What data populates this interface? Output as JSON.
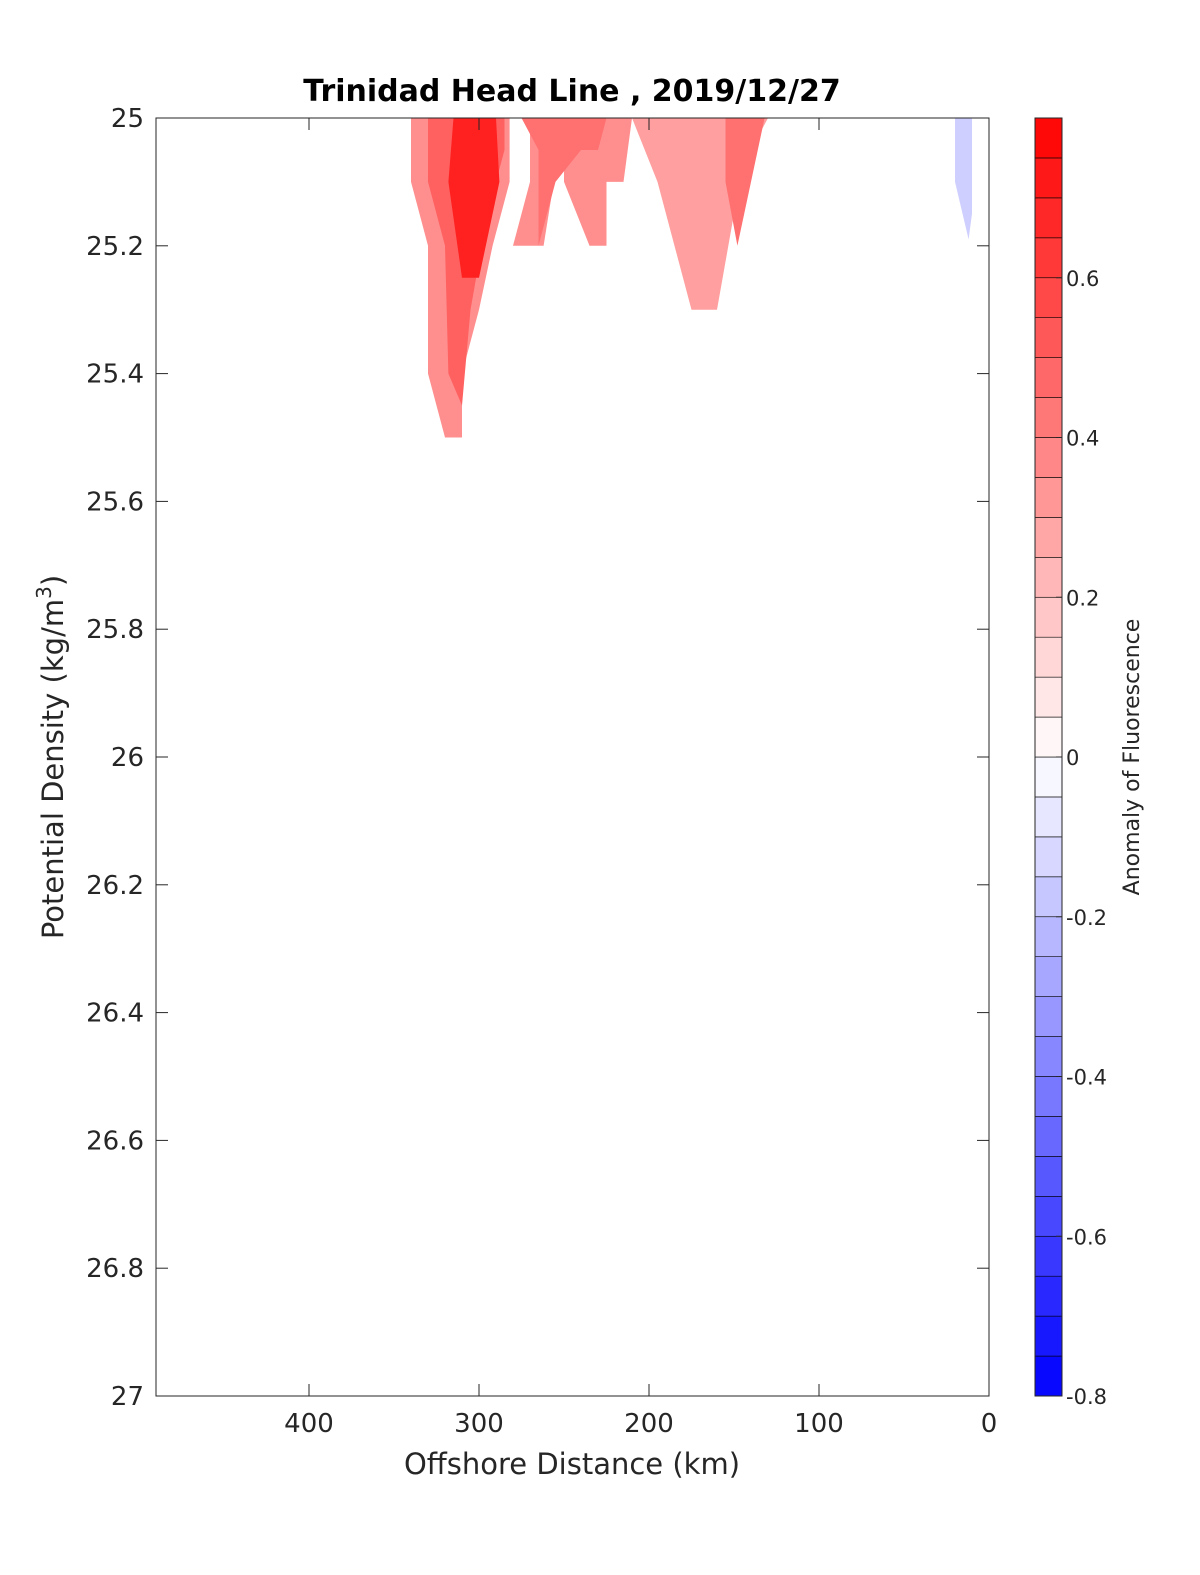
{
  "chart_data": {
    "type": "heatmap",
    "subtype": "filled-contour",
    "title": "Trinidad Head Line , 2019/12/27",
    "xlabel": "Offshore Distance (km)",
    "ylabel": "Potential Density (kg/m",
    "ylabel_sup": "3",
    "ylabel_end": ")",
    "x_direction": "reversed",
    "y_direction": "reversed",
    "xlim": [
      490,
      0
    ],
    "ylim": [
      25,
      27
    ],
    "xticks": [
      400,
      300,
      200,
      100,
      0
    ],
    "xtick_labels": [
      "400",
      "300",
      "200",
      "100",
      "0"
    ],
    "yticks": [
      25,
      25.2,
      25.4,
      25.6,
      25.8,
      26,
      26.2,
      26.4,
      26.6,
      26.8,
      27
    ],
    "ytick_labels": [
      "25",
      "25.2",
      "25.4",
      "25.6",
      "25.8",
      "26",
      "26.2",
      "26.4",
      "26.6",
      "26.8",
      "27"
    ],
    "grid": false,
    "colorbar": {
      "label": "Anomaly of Fluorescence",
      "range": [
        -0.8,
        0.8
      ],
      "levels": 32,
      "low_color": "#0000ff",
      "mid_color": "#ffffff",
      "high_color": "#ff0000",
      "ticks": [
        0.6,
        0.4,
        0.2,
        0,
        -0.2,
        -0.4,
        -0.6,
        -0.8
      ],
      "tick_labels": [
        "0.6",
        "0.4",
        "0.2",
        "0",
        "-0.2",
        "-0.4",
        "-0.6",
        "-0.8"
      ]
    },
    "regions": [
      {
        "name": "patch-340km-outer",
        "value": 0.35,
        "points": [
          [
            340,
            25
          ],
          [
            340,
            25.1
          ],
          [
            330,
            25.2
          ],
          [
            330,
            25.4
          ],
          [
            320,
            25.5
          ],
          [
            310,
            25.5
          ],
          [
            310,
            25.4
          ],
          [
            300,
            25.3
          ],
          [
            292,
            25.2
          ],
          [
            282,
            25.1
          ],
          [
            282,
            25
          ],
          [
            270,
            25
          ],
          [
            270,
            25.1
          ],
          [
            280,
            25.2
          ],
          [
            265,
            25.2
          ],
          [
            262,
            25.2
          ],
          [
            250,
            25
          ],
          [
            250,
            25.1
          ],
          [
            235,
            25.2
          ],
          [
            225,
            25.2
          ],
          [
            225,
            25.1
          ],
          [
            215,
            25.1
          ],
          [
            210,
            25
          ]
        ]
      },
      {
        "name": "patch-340km-mid",
        "value": 0.5,
        "points": [
          [
            330,
            25
          ],
          [
            330,
            25.1
          ],
          [
            320,
            25.2
          ],
          [
            318,
            25.4
          ],
          [
            310,
            25.45
          ],
          [
            305,
            25.3
          ],
          [
            295,
            25.15
          ],
          [
            285,
            25.05
          ],
          [
            285,
            25
          ]
        ]
      },
      {
        "name": "patch-340km-core",
        "value": 0.7,
        "points": [
          [
            315,
            25
          ],
          [
            318,
            25.1
          ],
          [
            310,
            25.25
          ],
          [
            300,
            25.25
          ],
          [
            288,
            25.1
          ],
          [
            290,
            25
          ]
        ]
      },
      {
        "name": "patch-260km-mid",
        "value": 0.45,
        "points": [
          [
            275,
            25
          ],
          [
            265,
            25.05
          ],
          [
            265,
            25.2
          ],
          [
            255,
            25.1
          ],
          [
            240,
            25.05
          ],
          [
            230,
            25.05
          ],
          [
            225,
            25
          ]
        ]
      },
      {
        "name": "patch-200km-outer",
        "value": 0.3,
        "points": [
          [
            210,
            25
          ],
          [
            195,
            25.1
          ],
          [
            180,
            25.25
          ],
          [
            175,
            25.3
          ],
          [
            160,
            25.3
          ],
          [
            150,
            25.15
          ],
          [
            140,
            25.05
          ],
          [
            130,
            25
          ]
        ]
      },
      {
        "name": "patch-200km-edge",
        "value": 0.45,
        "points": [
          [
            155,
            25
          ],
          [
            155,
            25.1
          ],
          [
            148,
            25.2
          ],
          [
            140,
            25.1
          ],
          [
            132,
            25
          ]
        ]
      },
      {
        "name": "patch-nearshore-blue",
        "value": -0.15,
        "points": [
          [
            20,
            25
          ],
          [
            20,
            25.1
          ],
          [
            12,
            25.19
          ],
          [
            10,
            25.15
          ],
          [
            10,
            25
          ]
        ]
      }
    ]
  }
}
